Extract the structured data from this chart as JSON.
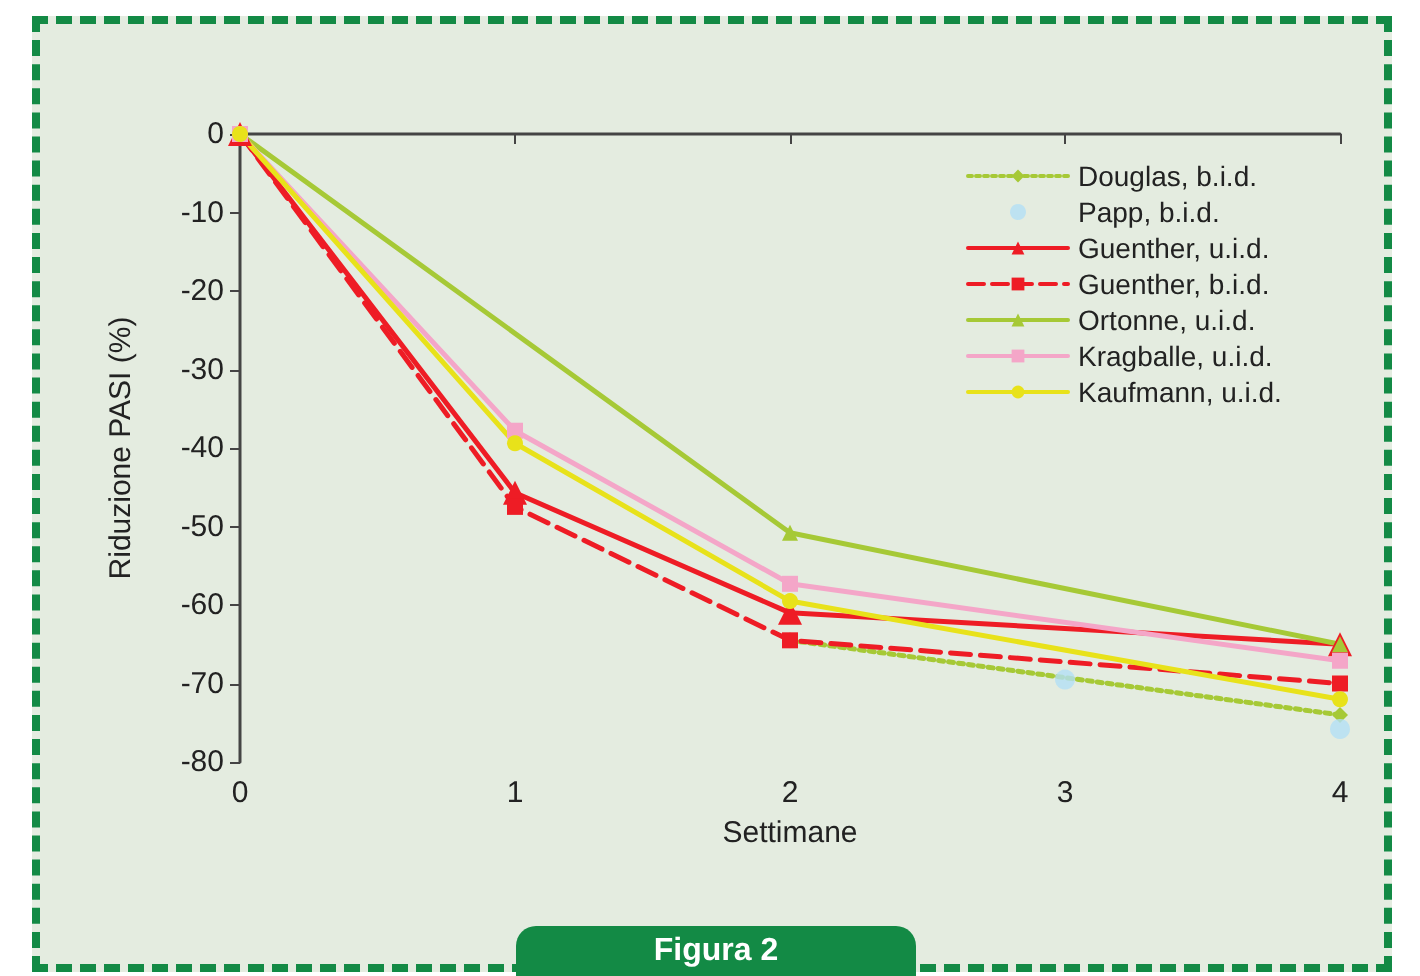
{
  "chart_data": {
    "type": "line",
    "xlabel": "Settimane",
    "ylabel": "Riduzione PASI (%)",
    "xlim": [
      0,
      4
    ],
    "xticks": [
      0,
      1,
      2,
      3,
      4
    ],
    "ylim": [
      -80,
      0
    ],
    "yticks": [
      -80,
      -70,
      -60,
      -50,
      -40,
      -30,
      -20,
      -10,
      0
    ],
    "grid": false,
    "legend": "top right",
    "annotations": [
      "Figura 2"
    ],
    "series": [
      {
        "name": "Douglas, b.i.d.",
        "color": "#a6c936",
        "marker": "diamond",
        "line_style": "dotted",
        "x": [
          2,
          3,
          4
        ],
        "values": [
          -64.5,
          null,
          -74
        ]
      },
      {
        "name": "Papp, b.i.d.",
        "type": "scatter",
        "color": "#b3e0f5",
        "marker": "circle",
        "x": [
          3,
          4
        ],
        "values": [
          -69.5,
          -75.8
        ]
      },
      {
        "name": "Guenther, u.i.d.",
        "color": "#ee1c25",
        "marker": "triangle",
        "line_style": "solid",
        "x": [
          0,
          1,
          2,
          4
        ],
        "values": [
          0,
          -45.7,
          -61,
          -65
        ]
      },
      {
        "name": "Guenther, b.i.d.",
        "color": "#ee1c25",
        "marker": "square",
        "line_style": "dashed",
        "x": [
          0,
          1,
          2,
          4
        ],
        "values": [
          0,
          -47.5,
          -64.5,
          -70
        ]
      },
      {
        "name": "Ortonne, u.i.d.",
        "color": "#a6c936",
        "marker": "triangle",
        "line_style": "solid",
        "x": [
          0,
          2,
          4
        ],
        "values": [
          0,
          -50.8,
          -65
        ]
      },
      {
        "name": "Kragballe, u.i.d.",
        "color": "#f4a6c8",
        "marker": "square",
        "line_style": "solid",
        "x": [
          0,
          1,
          2,
          4
        ],
        "values": [
          0,
          -37.8,
          -57.3,
          -67.1
        ]
      },
      {
        "name": "Kaufmann, u.i.d.",
        "color": "#e8e21a",
        "marker": "circle",
        "line_style": "solid",
        "x": [
          0,
          1,
          2,
          4
        ],
        "values": [
          0,
          -39.4,
          -59.5,
          -72
        ]
      }
    ]
  }
}
